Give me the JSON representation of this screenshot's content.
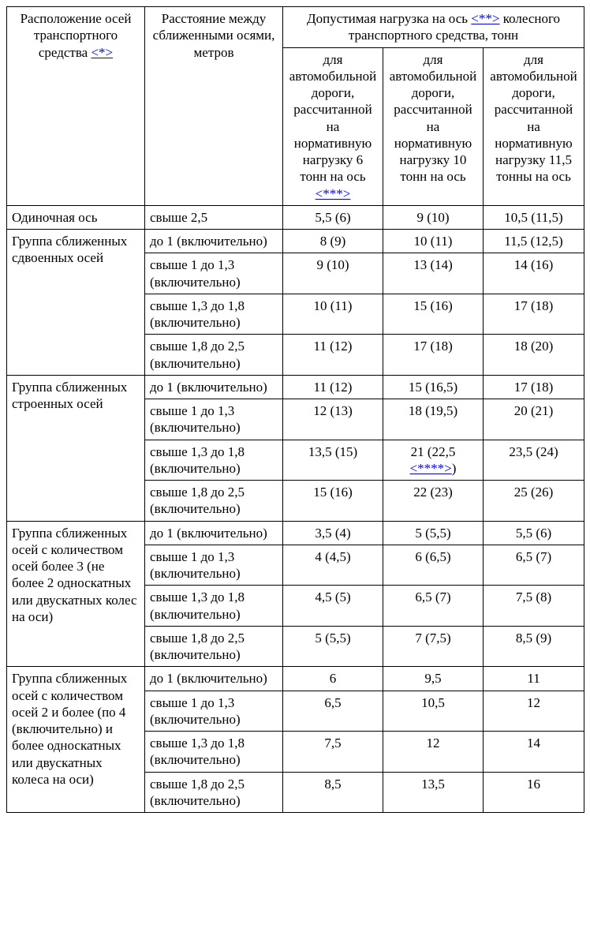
{
  "headers": {
    "col1": "Расположение осей транспортного средства ",
    "col1_link": "<*>",
    "col2": "Расстояние между сближенными осями, метров",
    "col345_a": "Допустимая нагрузка на ось ",
    "col345_link": "<**>",
    "col345_b": " колесного транспортного средства, тонн",
    "col3_a": "для автомобильной дороги, рассчитанной на нормативную нагрузку 6 тонн на ось ",
    "col3_link": "<***>",
    "col4": "для автомобильной дороги, рассчитанной на нормативную нагрузку 10 тонн на ось",
    "col5": "для автомобильной дороги, рассчитанной на нормативную нагрузку 11,5 тонны на ось"
  },
  "groups": [
    {
      "label": "Одиночная ось",
      "rows": [
        {
          "dist": "свыше 2,5",
          "c3": "5,5 (6)",
          "c4": "9 (10)",
          "c5": "10,5 (11,5)"
        }
      ]
    },
    {
      "label": "Группа сближенных сдвоенных осей",
      "rows": [
        {
          "dist": "до 1 (включительно)",
          "c3": "8 (9)",
          "c4": "10 (11)",
          "c5": "11,5 (12,5)"
        },
        {
          "dist": "свыше 1 до 1,3 (включительно)",
          "c3": "9 (10)",
          "c4": "13 (14)",
          "c5": "14 (16)"
        },
        {
          "dist": "свыше 1,3 до 1,8 (включительно)",
          "c3": "10 (11)",
          "c4": "15 (16)",
          "c5": "17 (18)"
        },
        {
          "dist": "свыше 1,8 до 2,5 (включительно)",
          "c3": "11 (12)",
          "c4": "17 (18)",
          "c5": "18 (20)"
        }
      ]
    },
    {
      "label": "Группа сближенных строенных осей",
      "rows": [
        {
          "dist": "до 1 (включительно)",
          "c3": "11 (12)",
          "c4": "15 (16,5)",
          "c5": "17 (18)"
        },
        {
          "dist": "свыше 1 до 1,3 (включительно)",
          "c3": "12 (13)",
          "c4": "18 (19,5)",
          "c5": "20 (21)"
        },
        {
          "dist": "свыше 1,3 до 1,8 (включительно)",
          "c3": "13,5 (15)",
          "c4_a": "21 (22,5 ",
          "c4_link": "<****>",
          "c4_b": ")",
          "c5": "23,5 (24)"
        },
        {
          "dist": "свыше 1,8 до 2,5 (включительно)",
          "c3": "15 (16)",
          "c4": "22 (23)",
          "c5": "25 (26)"
        }
      ]
    },
    {
      "label": "Группа сближенных осей с количеством осей более 3 (не более 2 односкатных или двускатных колес на оси)",
      "rows": [
        {
          "dist": "до 1 (включительно)",
          "c3": "3,5 (4)",
          "c4": "5 (5,5)",
          "c5": "5,5 (6)"
        },
        {
          "dist": "свыше 1 до 1,3 (включительно)",
          "c3": "4 (4,5)",
          "c4": "6 (6,5)",
          "c5": "6,5 (7)"
        },
        {
          "dist": "свыше 1,3 до 1,8 (включительно)",
          "c3": "4,5 (5)",
          "c4": "6,5 (7)",
          "c5": "7,5 (8)"
        },
        {
          "dist": "свыше 1,8 до 2,5 (включительно)",
          "c3": "5 (5,5)",
          "c4": "7 (7,5)",
          "c5": "8,5 (9)"
        }
      ]
    },
    {
      "label": "Группа сближенных осей с количеством осей 2 и более (по 4 (включительно) и более односкатных или двускатных колеса на оси)",
      "rows": [
        {
          "dist": "до 1 (включительно)",
          "c3": "6",
          "c4": "9,5",
          "c5": "11"
        },
        {
          "dist": "свыше 1 до 1,3 (включительно)",
          "c3": "6,5",
          "c4": "10,5",
          "c5": "12"
        },
        {
          "dist": "свыше 1,3 до 1,8 (включительно)",
          "c3": "7,5",
          "c4": "12",
          "c5": "14"
        },
        {
          "dist": "свыше 1,8 до 2,5 (включительно)",
          "c3": "8,5",
          "c4": "13,5",
          "c5": "16"
        }
      ]
    }
  ]
}
